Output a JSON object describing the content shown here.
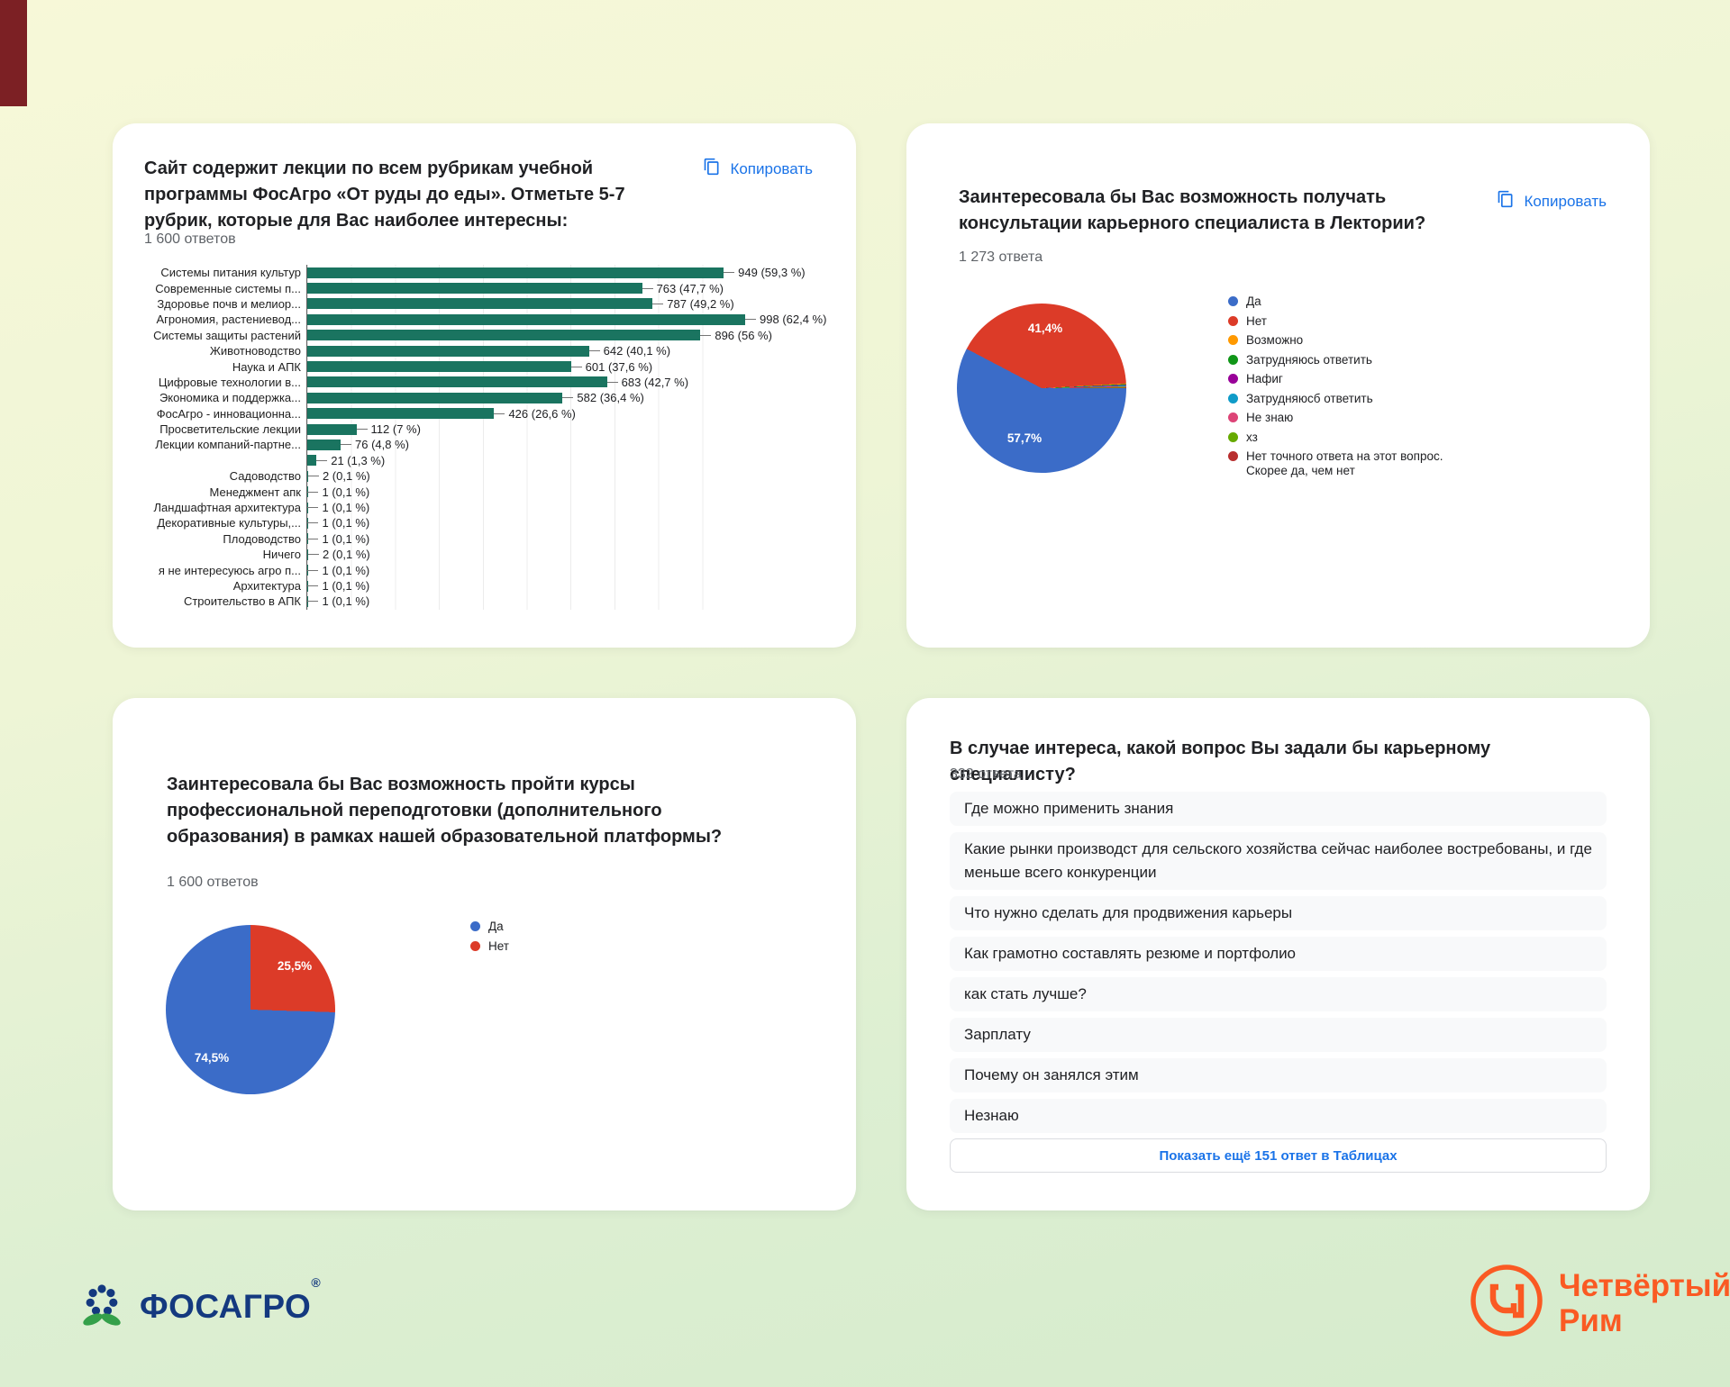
{
  "ui": {
    "copy_label": "Копировать"
  },
  "colors": {
    "accent_blue": "#1a73e8",
    "bar_green": "#1a7460",
    "corner_strip_red": "#7c2024",
    "fosagro_navy": "#14397f",
    "fosagro_leaf_green": "#34a04a",
    "rim_orange": "#fa5a23"
  },
  "chart_data": [
    {
      "type": "bar",
      "orientation": "horizontal",
      "title": "Сайт содержит лекции по всем рубрикам учебной программы ФосАгро «От руды до еды». Отметьте 5-7 рубрик, которые для Вас наиболее интересны:",
      "responses_label": "1 600 ответов",
      "categories": [
        "Системы питания культур",
        "Современные системы п...",
        "Здоровье почв и мелиор...",
        "Агрономия, растениевод...",
        "Системы защиты растений",
        "Животноводство",
        "Наука и АПК",
        "Цифровые технологии в...",
        "Экономика и поддержка...",
        "ФосАгро - инновационна...",
        "Просветительские лекции",
        "Лекции компаний-партне...",
        "",
        "Садоводство",
        "Менеджмент апк",
        "Ландшафтная архитектура",
        "Декоративные культуры,...",
        "Плодоводство",
        "Ничего",
        "я не интересуюсь агро п...",
        "Архитектура",
        "Строительство в АПК"
      ],
      "values": [
        949,
        763,
        787,
        998,
        896,
        642,
        601,
        683,
        582,
        426,
        112,
        76,
        21,
        2,
        1,
        1,
        1,
        1,
        2,
        1,
        1,
        1
      ],
      "value_labels": [
        "949 (59,3 %)",
        "763 (47,7 %)",
        "787 (49,2 %)",
        "998 (62,4 %)",
        "896 (56 %)",
        "642 (40,1 %)",
        "601 (37,6 %)",
        "683 (42,7 %)",
        "582 (36,4 %)",
        "426 (26,6 %)",
        "112 (7 %)",
        "76 (4,8 %)",
        "21 (1,3 %)",
        "2 (0,1 %)",
        "1 (0,1 %)",
        "1 (0,1 %)",
        "1 (0,1 %)",
        "1 (0,1 %)",
        "2 (0,1 %)",
        "1 (0,1 %)",
        "1 (0,1 %)",
        "1 (0,1 %)"
      ],
      "xlim": [
        0,
        1000
      ],
      "grid": true,
      "bar_color": "#1a7460"
    },
    {
      "type": "pie",
      "title": "Заинтересовала бы Вас возможность получать консультации карьерного специалиста в Лектории?",
      "responses_label": "1 273 ответа",
      "labels": [
        "Да",
        "Нет",
        "Возможно",
        "Затрудняюсь ответить",
        "Нафиг",
        "Затрудняюсб ответить",
        "Не знаю",
        "хз",
        "Нет точного ответа на этот вопрос. Скорее да, чем нет"
      ],
      "values_pct": [
        57.7,
        41.4,
        null,
        null,
        null,
        null,
        null,
        null,
        null
      ],
      "colors": [
        "#3b6cc8",
        "#dc3b28",
        "#ff9900",
        "#109618",
        "#990099",
        "#0f9bc8",
        "#dd4477",
        "#66aa00",
        "#b82e2e"
      ],
      "rotation_deg": 90,
      "legend_position": "right",
      "shown_slice_labels": [
        {
          "text": "57,7%"
        },
        {
          "text": "41,4%"
        }
      ]
    },
    {
      "type": "pie",
      "title": "Заинтересовала бы Вас возможность пройти курсы профессиональной переподготовки (дополнительного образования) в рамках нашей образовательной платформы?",
      "responses_label": "1 600 ответов",
      "labels": [
        "Да",
        "Нет"
      ],
      "values_pct": [
        74.5,
        25.5
      ],
      "colors": [
        "#3b6cc8",
        "#dc3b28"
      ],
      "rotation_deg": 91.8,
      "legend_position": "right",
      "shown_slice_labels": [
        {
          "text": "74,5%"
        },
        {
          "text": "25,5%"
        }
      ]
    }
  ],
  "questions_card": {
    "title": "В случае интереса, какой вопрос Вы задали бы карьерному специалисту?",
    "responses_label": "332 ответа",
    "answers": [
      "Где можно применить знания",
      "Какие рынки производст для сельского хозяйства сейчас наиболее востребованы, и где меньше всего конкуренции",
      "Что нужно сделать для продвижения карьеры",
      "Как грамотно составлять резюме и портфолио",
      "как стать лучше?",
      "Зарплату",
      "Почему он занялся этим",
      "Незнаю"
    ],
    "show_more_label": "Показать ещё 151 ответ в Таблицах"
  },
  "footer": {
    "fosagro_wordmark": "ФОСАГРО",
    "fosagro_reg": "®",
    "rim_name_line1": "Четвёртый",
    "rim_name_line2": "Рим"
  }
}
